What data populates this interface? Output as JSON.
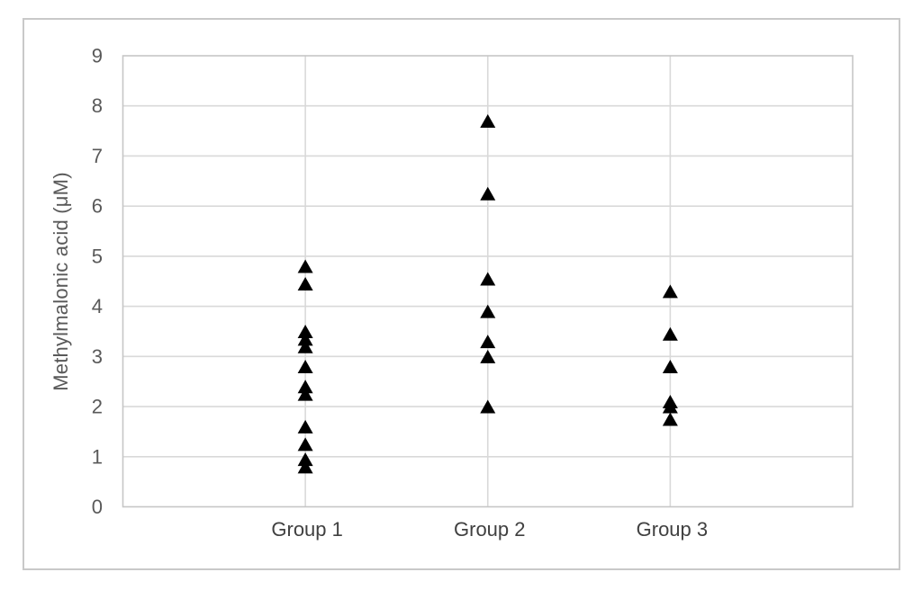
{
  "figure": {
    "background": "#ffffff",
    "border_color": "#c9c9c9"
  },
  "chart_data": {
    "type": "scatter",
    "marker": "triangle-up",
    "title": "",
    "xlabel": "",
    "ylabel": "Methylmalonic acid (μM)",
    "ylim": [
      0,
      9
    ],
    "yticks": [
      0,
      1,
      2,
      3,
      4,
      5,
      6,
      7,
      8,
      9
    ],
    "x_slots": 4,
    "categories": [
      {
        "label": "Group 1",
        "slot": 1
      },
      {
        "label": "Group 2",
        "slot": 2
      },
      {
        "label": "Group 3",
        "slot": 3
      }
    ],
    "series": [
      {
        "name": "Group 1",
        "slot": 1,
        "values": [
          4.8,
          4.45,
          3.5,
          3.35,
          3.2,
          2.8,
          2.4,
          2.25,
          1.6,
          1.25,
          0.95,
          0.8
        ]
      },
      {
        "name": "Group 2",
        "slot": 2,
        "values": [
          7.7,
          6.25,
          4.55,
          3.9,
          3.3,
          3.0,
          2.0
        ]
      },
      {
        "name": "Group 3",
        "slot": 3,
        "values": [
          4.3,
          3.45,
          2.8,
          2.1,
          2.0,
          1.75
        ]
      }
    ],
    "grid": {
      "horizontal": true,
      "vertical": true
    },
    "legend": "none",
    "colors": {
      "marker": "#000000",
      "gridline": "#d9d9d9",
      "axis_line": "#c6c6c6",
      "tick_text": "#595959",
      "category_text": "#404040"
    }
  }
}
